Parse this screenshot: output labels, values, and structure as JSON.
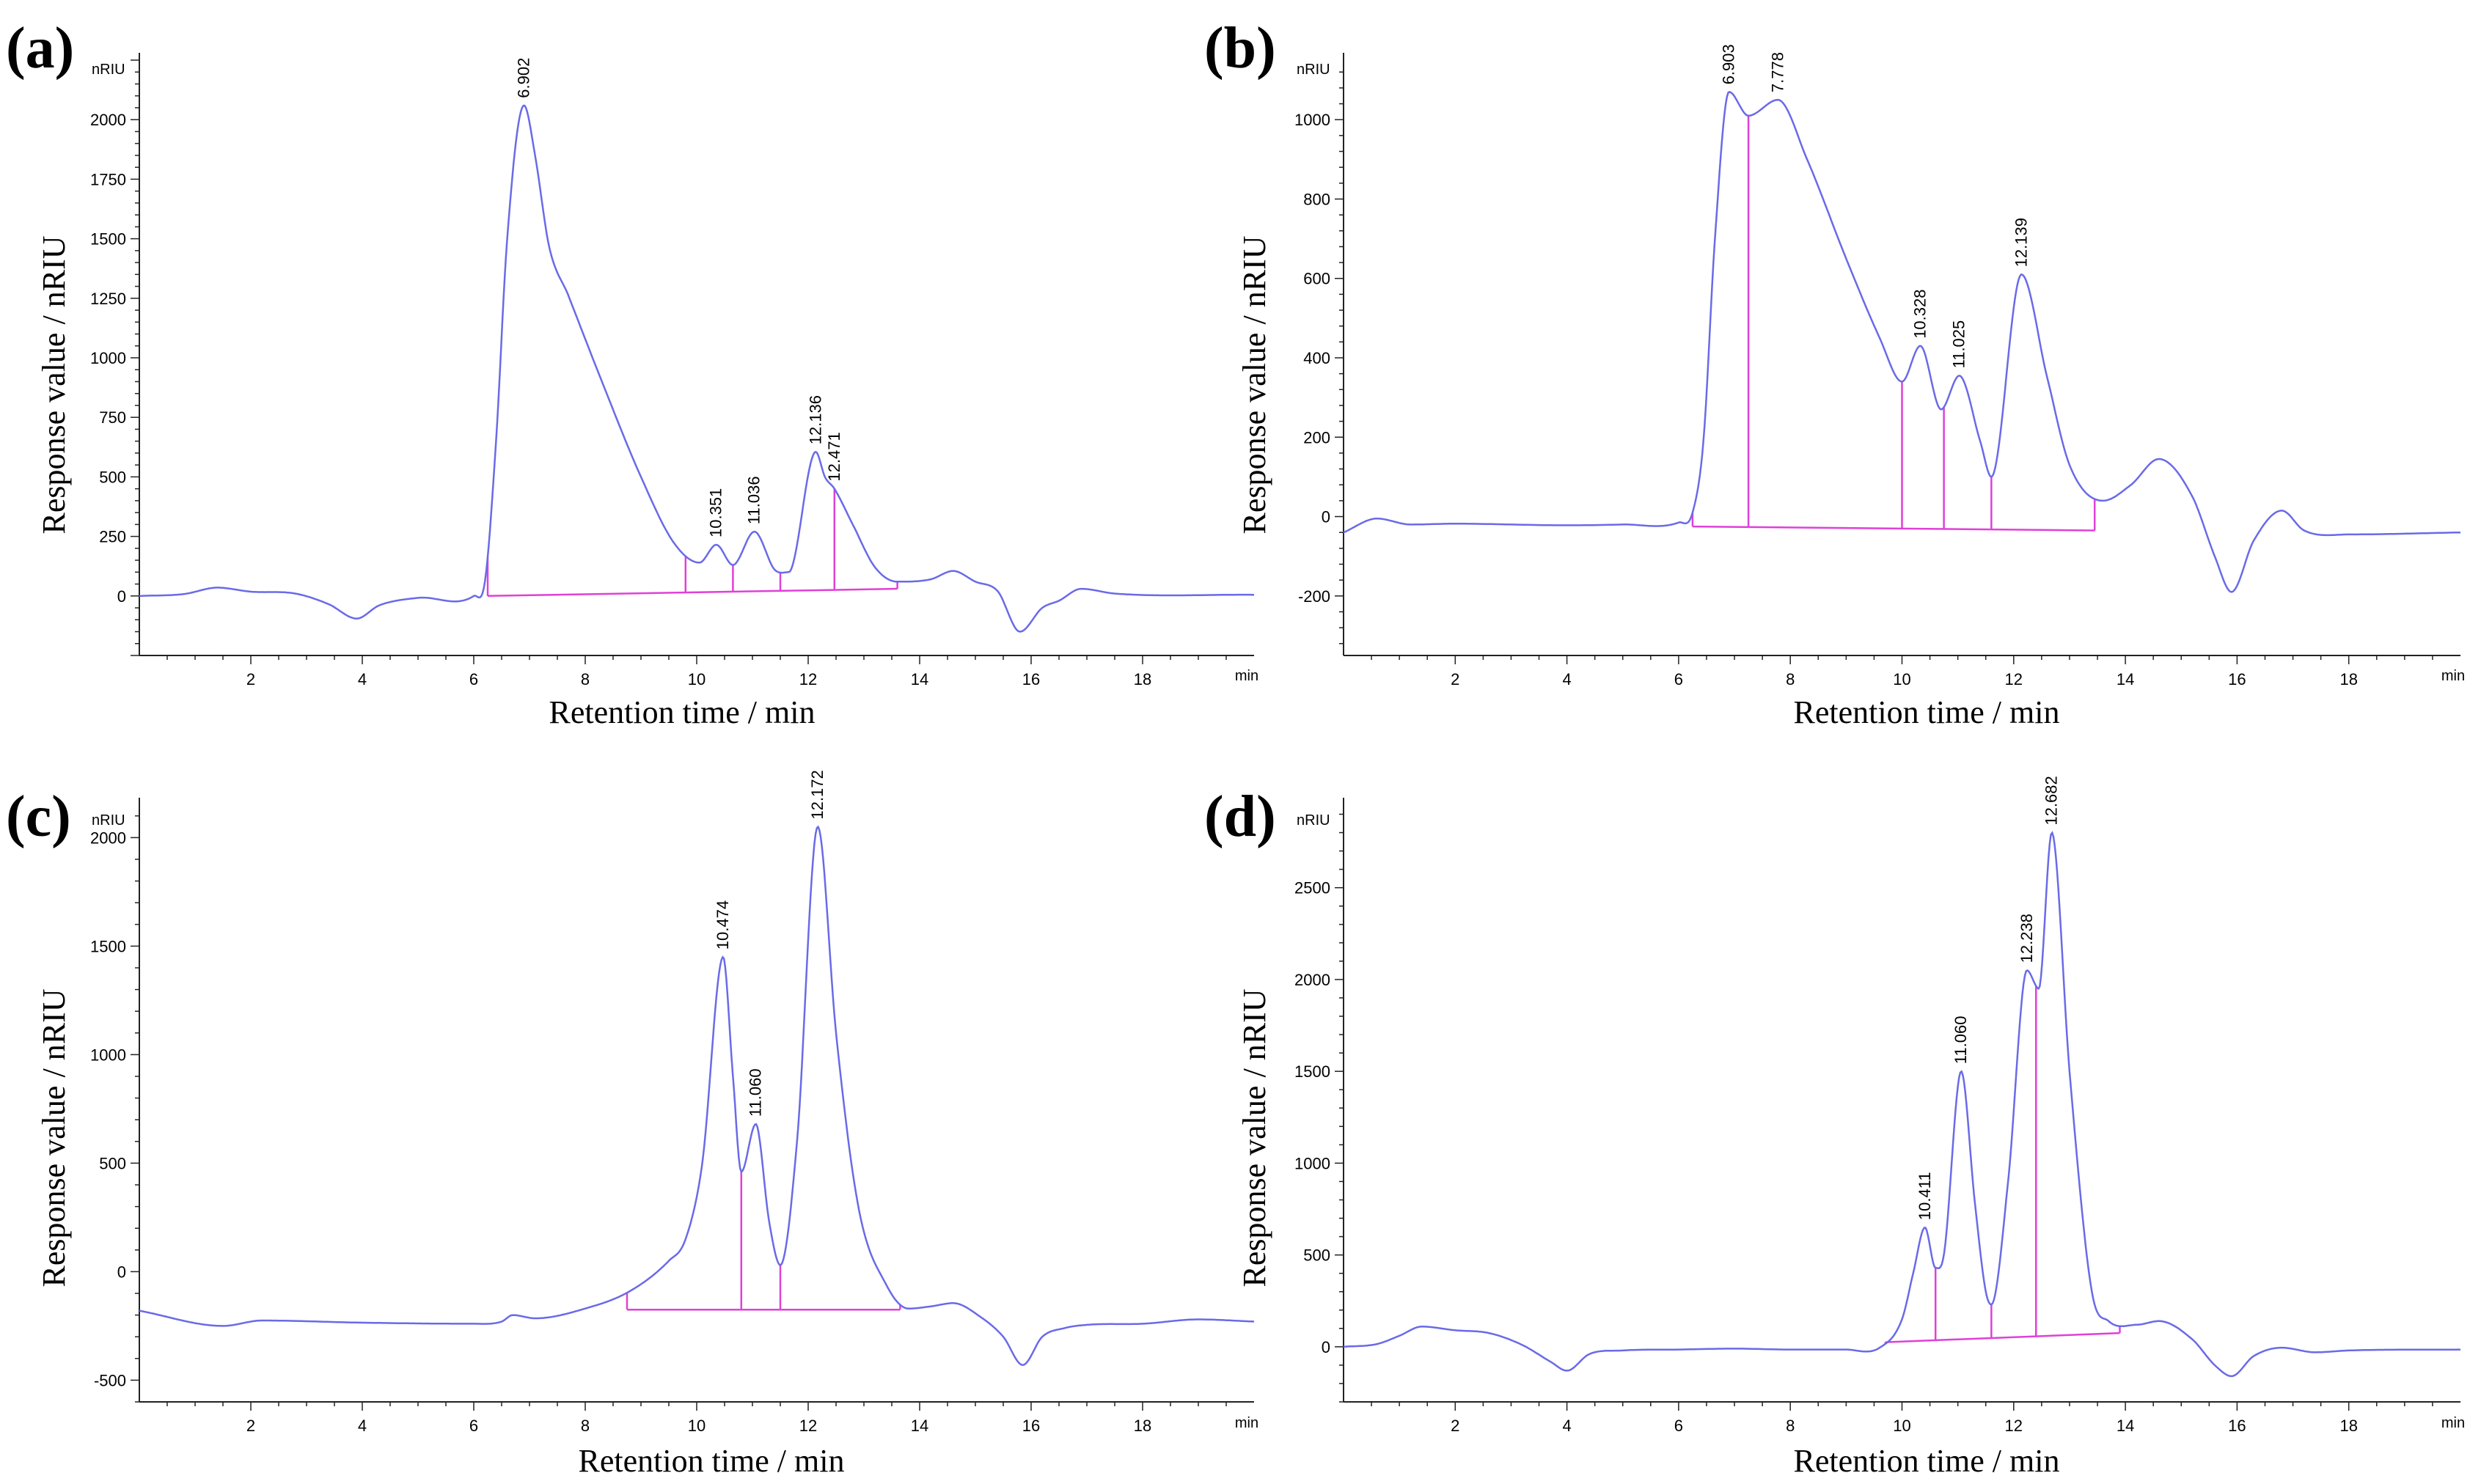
{
  "figure": {
    "x_axis_title": "Retention time / min",
    "y_axis_title": "Response value / nRIU",
    "x_unit": "min",
    "y_unit": "nRIU"
  },
  "colors": {
    "trace": "#6a6ae8",
    "baseline": "#e040d8",
    "axis": "#222222"
  },
  "chart_data": [
    {
      "id": "a",
      "label": "(a)",
      "type": "line",
      "xlim": [
        0,
        20
      ],
      "ylim": [
        -250,
        2250
      ],
      "x_ticks": [
        2,
        4,
        6,
        8,
        10,
        12,
        14,
        16,
        18
      ],
      "y_ticks": [
        0,
        250,
        500,
        750,
        1000,
        1250,
        1500,
        1750,
        2000
      ],
      "trace": [
        [
          0,
          0
        ],
        [
          0.8,
          8
        ],
        [
          1.4,
          35
        ],
        [
          2,
          18
        ],
        [
          2.8,
          10
        ],
        [
          3.4,
          -35
        ],
        [
          3.9,
          -95
        ],
        [
          4.3,
          -40
        ],
        [
          5,
          -8
        ],
        [
          6,
          0
        ],
        [
          6.2,
          60
        ],
        [
          6.4,
          650
        ],
        [
          6.6,
          1500
        ],
        [
          6.902,
          2060
        ],
        [
          7.1,
          1850
        ],
        [
          7.35,
          1470
        ],
        [
          7.7,
          1260
        ],
        [
          8.3,
          900
        ],
        [
          9,
          500
        ],
        [
          9.6,
          220
        ],
        [
          10.05,
          140
        ],
        [
          10.351,
          215
        ],
        [
          10.65,
          130
        ],
        [
          11.036,
          270
        ],
        [
          11.4,
          110
        ],
        [
          11.65,
          100
        ],
        [
          12.136,
          605
        ],
        [
          12.3,
          500
        ],
        [
          12.471,
          450
        ],
        [
          12.8,
          300
        ],
        [
          13.2,
          120
        ],
        [
          13.6,
          60
        ],
        [
          14.2,
          70
        ],
        [
          14.6,
          105
        ],
        [
          15,
          60
        ],
        [
          15.4,
          20
        ],
        [
          15.8,
          -150
        ],
        [
          16.2,
          -50
        ],
        [
          16.5,
          -20
        ],
        [
          16.9,
          30
        ],
        [
          17.5,
          10
        ],
        [
          20,
          5
        ]
      ],
      "baseline": [
        [
          6.25,
          0
        ],
        [
          13.6,
          30
        ]
      ],
      "drop_lines": [
        9.8,
        10.65,
        11.5,
        12.471
      ],
      "peaks": [
        {
          "x": 6.902,
          "y": 2060,
          "label": "6.902"
        },
        {
          "x": 10.351,
          "y": 215,
          "label": "10.351"
        },
        {
          "x": 11.036,
          "y": 270,
          "label": "11.036"
        },
        {
          "x": 12.136,
          "y": 605,
          "label": "12.136"
        },
        {
          "x": 12.471,
          "y": 450,
          "label": "12.471"
        }
      ]
    },
    {
      "id": "b",
      "label": "(b)",
      "type": "line",
      "xlim": [
        0,
        20
      ],
      "ylim": [
        -350,
        1150
      ],
      "x_ticks": [
        2,
        4,
        6,
        8,
        10,
        12,
        14,
        16,
        18
      ],
      "y_ticks": [
        -200,
        0,
        200,
        400,
        600,
        800,
        1000
      ],
      "trace": [
        [
          0,
          -40
        ],
        [
          0.6,
          -5
        ],
        [
          1.2,
          -20
        ],
        [
          2,
          -18
        ],
        [
          4,
          -22
        ],
        [
          5,
          -20
        ],
        [
          6,
          -15
        ],
        [
          6.25,
          10
        ],
        [
          6.45,
          200
        ],
        [
          6.65,
          700
        ],
        [
          6.903,
          1070
        ],
        [
          7.25,
          1010
        ],
        [
          7.778,
          1050
        ],
        [
          8.3,
          900
        ],
        [
          9,
          650
        ],
        [
          9.6,
          450
        ],
        [
          10,
          340
        ],
        [
          10.328,
          430
        ],
        [
          10.7,
          270
        ],
        [
          11.025,
          355
        ],
        [
          11.4,
          190
        ],
        [
          11.6,
          100
        ],
        [
          12.139,
          610
        ],
        [
          12.6,
          350
        ],
        [
          13,
          130
        ],
        [
          13.6,
          40
        ],
        [
          14.1,
          80
        ],
        [
          14.6,
          145
        ],
        [
          15.2,
          50
        ],
        [
          15.6,
          -100
        ],
        [
          15.9,
          -190
        ],
        [
          16.3,
          -60
        ],
        [
          16.8,
          15
        ],
        [
          17.2,
          -35
        ],
        [
          18,
          -45
        ],
        [
          20,
          -40
        ]
      ],
      "baseline": [
        [
          6.25,
          -25
        ],
        [
          13.45,
          -35
        ]
      ],
      "drop_lines": [
        7.25,
        10.0,
        10.75,
        11.6
      ],
      "peaks": [
        {
          "x": 6.903,
          "y": 1070,
          "label": "6.903"
        },
        {
          "x": 7.778,
          "y": 1050,
          "label": "7.778"
        },
        {
          "x": 10.328,
          "y": 430,
          "label": "10.328"
        },
        {
          "x": 11.025,
          "y": 355,
          "label": "11.025"
        },
        {
          "x": 12.139,
          "y": 610,
          "label": "12.139"
        }
      ]
    },
    {
      "id": "c",
      "label": "(c)",
      "type": "line",
      "xlim": [
        0,
        20
      ],
      "ylim": [
        -600,
        2150
      ],
      "x_ticks": [
        2,
        4,
        6,
        8,
        10,
        12,
        14,
        16,
        18
      ],
      "y_ticks": [
        -500,
        0,
        500,
        1000,
        1500,
        2000
      ],
      "trace": [
        [
          0,
          -180
        ],
        [
          1.5,
          -250
        ],
        [
          2.2,
          -225
        ],
        [
          4,
          -235
        ],
        [
          6,
          -240
        ],
        [
          6.5,
          -230
        ],
        [
          6.7,
          -200
        ],
        [
          7.1,
          -215
        ],
        [
          8,
          -170
        ],
        [
          8.8,
          -90
        ],
        [
          9.5,
          50
        ],
        [
          9.8,
          150
        ],
        [
          10.1,
          500
        ],
        [
          10.474,
          1450
        ],
        [
          10.65,
          900
        ],
        [
          10.8,
          460
        ],
        [
          11.06,
          680
        ],
        [
          11.3,
          230
        ],
        [
          11.5,
          30
        ],
        [
          11.8,
          600
        ],
        [
          12.172,
          2050
        ],
        [
          12.5,
          1100
        ],
        [
          12.9,
          300
        ],
        [
          13.4,
          -60
        ],
        [
          13.8,
          -170
        ],
        [
          14.2,
          -160
        ],
        [
          14.6,
          -145
        ],
        [
          15.1,
          -210
        ],
        [
          15.5,
          -300
        ],
        [
          15.85,
          -430
        ],
        [
          16.2,
          -300
        ],
        [
          16.6,
          -260
        ],
        [
          17,
          -245
        ],
        [
          18,
          -240
        ],
        [
          19,
          -220
        ],
        [
          20,
          -230
        ]
      ],
      "baseline": [
        [
          8.75,
          -175
        ],
        [
          13.65,
          -175
        ]
      ],
      "drop_lines": [
        10.8,
        11.5
      ],
      "peaks": [
        {
          "x": 10.474,
          "y": 1450,
          "label": "10.474"
        },
        {
          "x": 11.06,
          "y": 680,
          "label": "11.060"
        },
        {
          "x": 12.172,
          "y": 2050,
          "label": "12.172"
        }
      ]
    },
    {
      "id": "d",
      "label": "(d)",
      "type": "line",
      "xlim": [
        0,
        20
      ],
      "ylim": [
        -300,
        2950
      ],
      "x_ticks": [
        2,
        4,
        6,
        8,
        10,
        12,
        14,
        16,
        18
      ],
      "y_ticks": [
        0,
        500,
        1000,
        1500,
        2000,
        2500
      ],
      "trace": [
        [
          0,
          0
        ],
        [
          0.6,
          15
        ],
        [
          1,
          60
        ],
        [
          1.4,
          110
        ],
        [
          2,
          90
        ],
        [
          2.6,
          75
        ],
        [
          3.2,
          10
        ],
        [
          3.7,
          -80
        ],
        [
          4,
          -130
        ],
        [
          4.4,
          -40
        ],
        [
          5,
          -20
        ],
        [
          6,
          -15
        ],
        [
          7,
          -10
        ],
        [
          8,
          -15
        ],
        [
          9,
          -15
        ],
        [
          9.6,
          -5
        ],
        [
          10,
          150
        ],
        [
          10.2,
          400
        ],
        [
          10.411,
          650
        ],
        [
          10.6,
          430
        ],
        [
          10.75,
          500
        ],
        [
          11.06,
          1500
        ],
        [
          11.3,
          800
        ],
        [
          11.5,
          300
        ],
        [
          11.6,
          230
        ],
        [
          11.9,
          900
        ],
        [
          12.238,
          2050
        ],
        [
          12.45,
          1950
        ],
        [
          12.682,
          2800
        ],
        [
          13,
          1500
        ],
        [
          13.4,
          300
        ],
        [
          13.7,
          140
        ],
        [
          14.2,
          120
        ],
        [
          14.6,
          140
        ],
        [
          15.2,
          40
        ],
        [
          15.6,
          -100
        ],
        [
          15.9,
          -160
        ],
        [
          16.3,
          -50
        ],
        [
          16.8,
          -5
        ],
        [
          17.4,
          -30
        ],
        [
          18,
          -20
        ],
        [
          20,
          -15
        ]
      ],
      "baseline": [
        [
          9.7,
          25
        ],
        [
          13.9,
          75
        ]
      ],
      "drop_lines": [
        10.6,
        11.6,
        12.4
      ],
      "peaks": [
        {
          "x": 10.411,
          "y": 650,
          "label": "10.411"
        },
        {
          "x": 11.06,
          "y": 1500,
          "label": "11.060"
        },
        {
          "x": 12.238,
          "y": 2050,
          "label": "12.238"
        },
        {
          "x": 12.682,
          "y": 2800,
          "label": "12.682"
        }
      ]
    }
  ]
}
